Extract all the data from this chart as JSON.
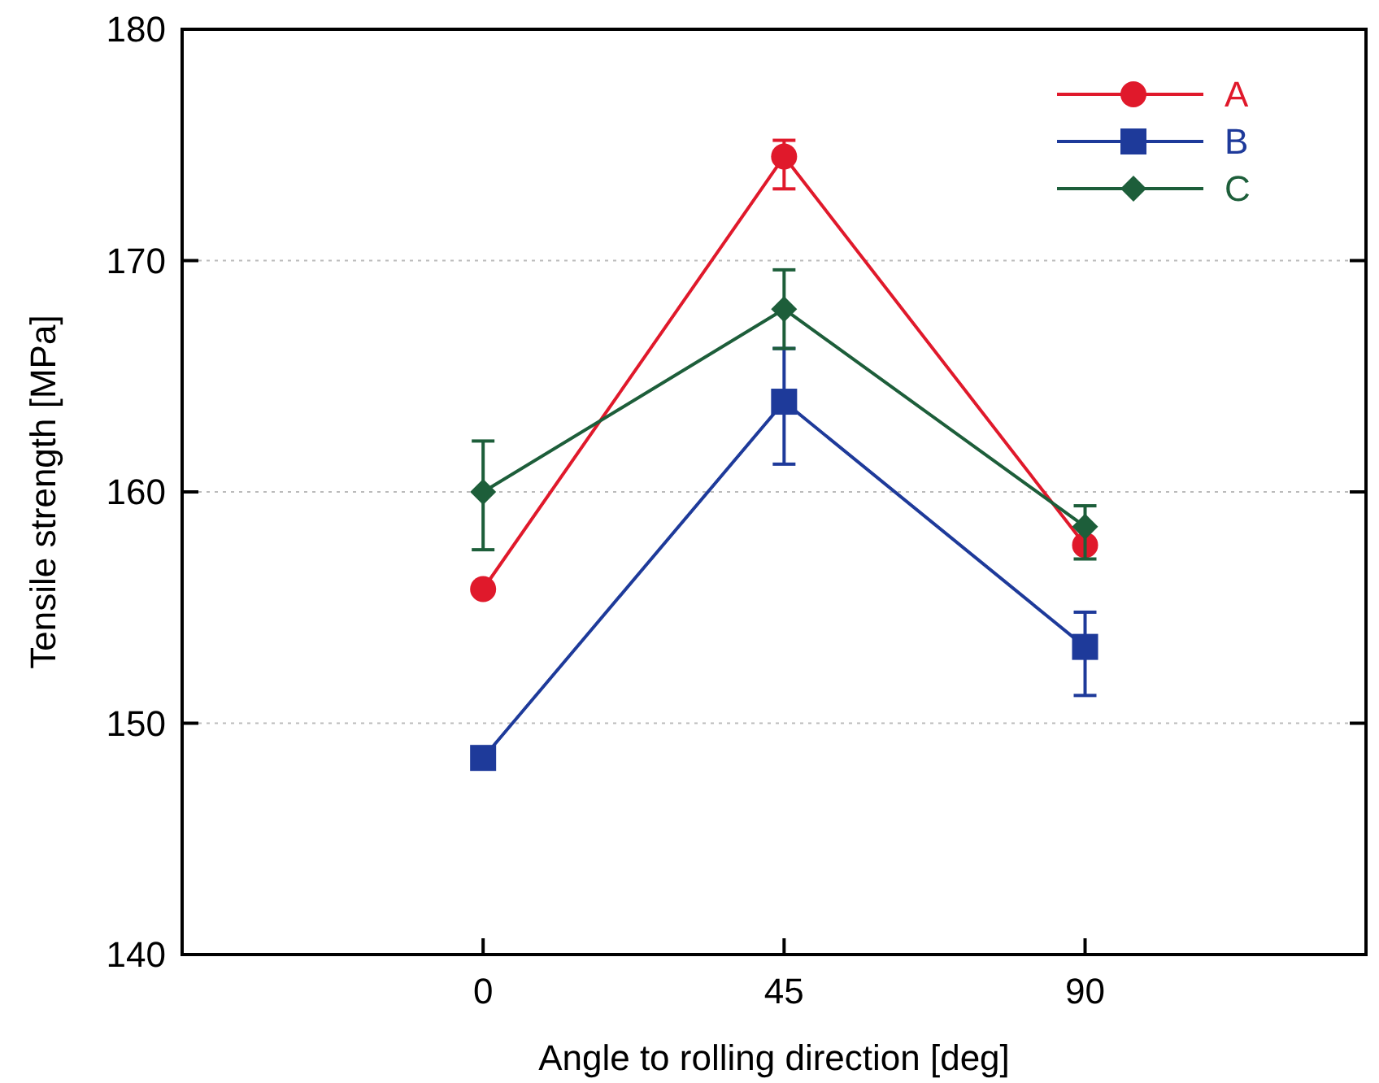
{
  "chart_data": {
    "type": "line",
    "xlabel": "Angle to rolling direction [deg]",
    "ylabel": "Tensile strength [MPa]",
    "x": [
      0,
      45,
      90
    ],
    "xlim": [
      -45,
      132
    ],
    "xticks": [
      0,
      45,
      90
    ],
    "ylim": [
      140,
      180
    ],
    "yticks": [
      140,
      150,
      160,
      170,
      180
    ],
    "grid": "y",
    "legend": "top right",
    "series": [
      {
        "name": "A",
        "color": "#e0192b",
        "marker": "circle",
        "values": [
          155.8,
          174.5,
          157.7
        ],
        "errors": [
          null,
          [
            173.1,
            175.2
          ],
          null
        ]
      },
      {
        "name": "B",
        "color": "#1e3a9a",
        "marker": "square",
        "values": [
          148.5,
          163.9,
          153.3
        ],
        "errors": [
          null,
          [
            161.2,
            166.2
          ],
          [
            151.2,
            154.8
          ]
        ]
      },
      {
        "name": "C",
        "color": "#1d5e3a",
        "marker": "diamond",
        "values": [
          160.0,
          167.9,
          158.5
        ],
        "errors": [
          [
            157.5,
            162.2
          ],
          [
            166.2,
            169.6
          ],
          [
            157.1,
            159.4
          ]
        ]
      }
    ]
  }
}
